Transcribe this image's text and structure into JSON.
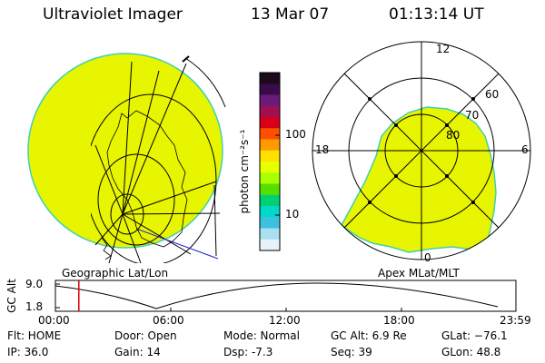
{
  "header": {
    "title": "Ultraviolet Imager",
    "date": "13 Mar 07",
    "time": "01:13:14 UT"
  },
  "colorbar": {
    "unit_label": "photon cm⁻²s⁻¹",
    "ticks": [
      {
        "label": "100",
        "value": 100
      },
      {
        "label": "10",
        "value": 10
      }
    ],
    "colors": [
      "#1a0a1a",
      "#3a0a4a",
      "#6a1a7a",
      "#a01050",
      "#d80018",
      "#ff5000",
      "#ff9a00",
      "#ffe100",
      "#e8ff00",
      "#aaff00",
      "#55e000",
      "#00d070",
      "#00d8c8",
      "#40c0e0",
      "#a8e0f0",
      "#e8f0f8"
    ]
  },
  "left_map": {
    "label": "Geographic Lat/Lon",
    "fill_color": "#e8f500"
  },
  "right_map": {
    "label": "Apex MLat/MLT",
    "mlt_labels": {
      "top": "12",
      "left": "18",
      "right": "6",
      "bottom": "0"
    },
    "lat_labels": [
      "60",
      "70",
      "80"
    ],
    "fill_color": "#e8f500"
  },
  "altitude_plot": {
    "ylabel": "GC Alt",
    "yticks": [
      "9.0",
      "1.8"
    ],
    "xticks": [
      "00:00",
      "06:00",
      "12:00",
      "18:00",
      "23:59"
    ],
    "marker_time_hours": 1.22
  },
  "info": {
    "flt": "Flt: HOME",
    "ip": "IP: 36.0",
    "door": "Door: Open",
    "gain": "Gain: 14",
    "mode": "Mode: Normal",
    "dsp": "Dsp:   -7.3",
    "gc_alt": "GC Alt: 6.9 Re",
    "seq": "Seq: 39",
    "glat": "GLat: −76.1",
    "glon": "GLon:  48.8"
  }
}
